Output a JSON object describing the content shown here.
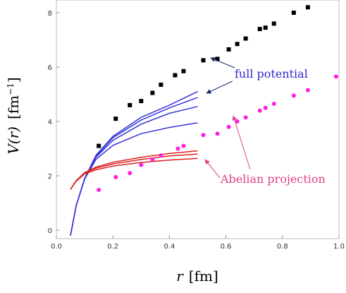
{
  "chart_data": {
    "type": "scatter",
    "xlabel_var": "r",
    "xlabel_unit": "[fm]",
    "ylabel_var": "V(r)",
    "ylabel_unit": "[fm",
    "ylabel_unit_exp": "−1",
    "ylabel_unit_close": "]",
    "xlim": [
      0.0,
      1.0
    ],
    "ylim": [
      0,
      8.3
    ],
    "x_ticks": [
      0.0,
      0.2,
      0.4,
      0.6,
      0.8,
      1.0
    ],
    "x_tick_labels": [
      "0.0",
      "0.2",
      "0.4",
      "0.6",
      "0.8",
      "1.0"
    ],
    "y_ticks": [
      0,
      2,
      4,
      6,
      8
    ],
    "y_tick_labels": [
      "0",
      "2",
      "4",
      "6",
      "8"
    ],
    "annotations": [
      {
        "text": "full potential",
        "color": "#2a2acc"
      },
      {
        "text": "Abelian projection",
        "color": "#e0408a"
      }
    ],
    "series": [
      {
        "marker": "square",
        "color": "#000000",
        "points": [
          [
            0.15,
            3.1
          ],
          [
            0.21,
            4.1
          ],
          [
            0.26,
            4.6
          ],
          [
            0.3,
            4.75
          ],
          [
            0.34,
            5.05
          ],
          [
            0.37,
            5.35
          ],
          [
            0.42,
            5.7
          ],
          [
            0.45,
            5.85
          ],
          [
            0.52,
            6.25
          ],
          [
            0.57,
            6.3
          ],
          [
            0.61,
            6.65
          ],
          [
            0.64,
            6.85
          ],
          [
            0.67,
            7.05
          ],
          [
            0.72,
            7.4
          ],
          [
            0.74,
            7.45
          ],
          [
            0.77,
            7.6
          ],
          [
            0.84,
            8.0
          ],
          [
            0.89,
            8.2
          ]
        ]
      },
      {
        "marker": "dot",
        "color": "#ff1fe0",
        "points": [
          [
            0.15,
            1.48
          ],
          [
            0.21,
            1.95
          ],
          [
            0.26,
            2.1
          ],
          [
            0.3,
            2.4
          ],
          [
            0.34,
            2.6
          ],
          [
            0.37,
            2.75
          ],
          [
            0.43,
            3.0
          ],
          [
            0.45,
            3.1
          ],
          [
            0.52,
            3.5
          ],
          [
            0.57,
            3.55
          ],
          [
            0.61,
            3.8
          ],
          [
            0.64,
            4.0
          ],
          [
            0.67,
            4.15
          ],
          [
            0.72,
            4.4
          ],
          [
            0.74,
            4.5
          ],
          [
            0.77,
            4.65
          ],
          [
            0.84,
            4.95
          ],
          [
            0.89,
            5.15
          ],
          [
            0.99,
            5.65
          ]
        ]
      }
    ],
    "curves": [
      {
        "color": "#3535d8",
        "group": "full",
        "points": [
          [
            0.05,
            -0.2
          ],
          [
            0.07,
            0.9
          ],
          [
            0.1,
            1.9
          ],
          [
            0.14,
            2.75
          ],
          [
            0.2,
            3.45
          ],
          [
            0.3,
            4.15
          ],
          [
            0.4,
            4.6
          ],
          [
            0.5,
            5.1
          ]
        ]
      },
      {
        "color": "#3535d8",
        "group": "full",
        "points": [
          [
            0.05,
            -0.2
          ],
          [
            0.07,
            0.9
          ],
          [
            0.1,
            1.9
          ],
          [
            0.14,
            2.72
          ],
          [
            0.2,
            3.4
          ],
          [
            0.3,
            4.05
          ],
          [
            0.4,
            4.5
          ],
          [
            0.5,
            4.88
          ]
        ]
      },
      {
        "color": "#3535d8",
        "group": "full",
        "points": [
          [
            0.05,
            -0.2
          ],
          [
            0.07,
            0.9
          ],
          [
            0.1,
            1.9
          ],
          [
            0.14,
            2.68
          ],
          [
            0.2,
            3.3
          ],
          [
            0.3,
            3.9
          ],
          [
            0.4,
            4.3
          ],
          [
            0.5,
            4.55
          ]
        ]
      },
      {
        "color": "#3535d8",
        "group": "full",
        "points": [
          [
            0.05,
            -0.2
          ],
          [
            0.07,
            0.9
          ],
          [
            0.1,
            1.88
          ],
          [
            0.14,
            2.6
          ],
          [
            0.2,
            3.12
          ],
          [
            0.3,
            3.55
          ],
          [
            0.4,
            3.78
          ],
          [
            0.5,
            3.95
          ]
        ]
      },
      {
        "color": "#e02020",
        "group": "abelian",
        "points": [
          [
            0.05,
            1.5
          ],
          [
            0.07,
            1.82
          ],
          [
            0.1,
            2.12
          ],
          [
            0.14,
            2.32
          ],
          [
            0.2,
            2.5
          ],
          [
            0.3,
            2.68
          ],
          [
            0.4,
            2.82
          ],
          [
            0.5,
            2.92
          ]
        ]
      },
      {
        "color": "#e02020",
        "group": "abelian",
        "points": [
          [
            0.05,
            1.5
          ],
          [
            0.07,
            1.82
          ],
          [
            0.1,
            2.1
          ],
          [
            0.14,
            2.28
          ],
          [
            0.2,
            2.44
          ],
          [
            0.3,
            2.6
          ],
          [
            0.4,
            2.73
          ],
          [
            0.5,
            2.8
          ]
        ]
      },
      {
        "color": "#e02020",
        "group": "abelian",
        "points": [
          [
            0.05,
            1.5
          ],
          [
            0.07,
            1.8
          ],
          [
            0.1,
            2.07
          ],
          [
            0.14,
            2.22
          ],
          [
            0.2,
            2.36
          ],
          [
            0.3,
            2.49
          ],
          [
            0.4,
            2.58
          ],
          [
            0.5,
            2.64
          ]
        ]
      }
    ]
  }
}
